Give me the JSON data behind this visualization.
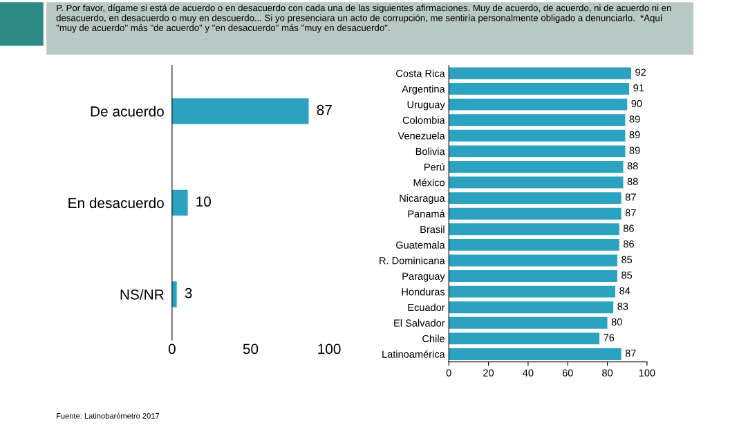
{
  "chart_data": [
    {
      "type": "bar",
      "orientation": "horizontal",
      "title": "P. Por favor, dígame si está de acuerdo o en desacuerdo con cada una de las siguientes afirmaciones. Muy de acuerdo, de acuerdo, ni de acuerdo ni en desacuerdo, en desacuerdo o muy en descuerdo... Si yo presenciara un acto de corrupción, me sentiría personalmente obligado a denunciarlo.  *Aquí \"muy de acuerdo\" más \"de acuerdo\" y \"en desacuerdo\" más \"muy en desacuerdo\".",
      "categories": [
        "De acuerdo",
        "En desacuerdo",
        "NS/NR"
      ],
      "values": [
        87,
        10,
        3
      ],
      "color": "#2ba3c0",
      "xlim": [
        0,
        100
      ],
      "xticks": [
        0,
        50,
        100
      ],
      "data_labels": true,
      "grid": false,
      "legend": false,
      "annotations": [
        "Fuente: Latinobarómetro 2017"
      ]
    },
    {
      "type": "bar",
      "orientation": "horizontal",
      "categories": [
        "Costa Rica",
        "Argentina",
        "Uruguay",
        "Colombia",
        "Venezuela",
        "Bolivia",
        "Perú",
        "México",
        "Nicaragua",
        "Panamá",
        "Brasil",
        "Guatemala",
        "R. Dominicana",
        "Paraguay",
        "Honduras",
        "Ecuador",
        "El Salvador",
        "Chile",
        "Latinoamérica"
      ],
      "values": [
        92,
        91,
        90,
        89,
        89,
        89,
        88,
        88,
        87,
        87,
        86,
        86,
        85,
        85,
        84,
        83,
        80,
        76,
        87
      ],
      "color": "#2ba3c0",
      "xlim": [
        0,
        100
      ],
      "xticks": [
        0,
        20,
        40,
        60,
        80,
        100
      ],
      "data_labels": true,
      "grid": false,
      "legend": false
    }
  ]
}
